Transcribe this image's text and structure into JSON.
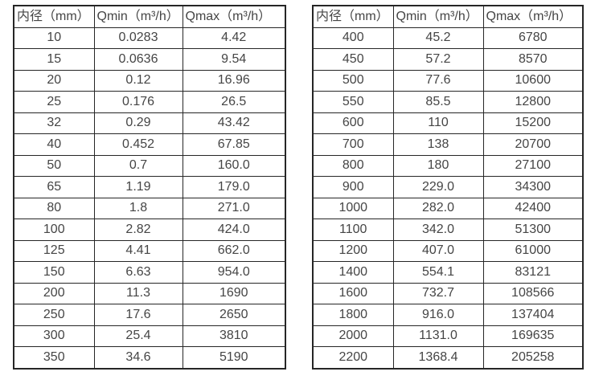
{
  "style": {
    "background_color": "#ffffff",
    "border_color": "#262626",
    "text_color": "#454545"
  },
  "chart_data": [
    {
      "type": "table",
      "name": "flow-rates-small-diameters",
      "columns": [
        "内径（mm）",
        "Qmin（m³/h）",
        "Qmax（m³/h）"
      ],
      "rows": [
        [
          "10",
          "0.0283",
          "4.42"
        ],
        [
          "15",
          "0.0636",
          "9.54"
        ],
        [
          "20",
          "0.12",
          "16.96"
        ],
        [
          "25",
          "0.176",
          "26.5"
        ],
        [
          "32",
          "0.29",
          "43.42"
        ],
        [
          "40",
          "0.452",
          "67.85"
        ],
        [
          "50",
          "0.7",
          "160.0"
        ],
        [
          "65",
          "1.19",
          "179.0"
        ],
        [
          "80",
          "1.8",
          "271.0"
        ],
        [
          "100",
          "2.82",
          "424.0"
        ],
        [
          "125",
          "4.41",
          "662.0"
        ],
        [
          "150",
          "6.63",
          "954.0"
        ],
        [
          "200",
          "11.3",
          "1690"
        ],
        [
          "250",
          "17.6",
          "2650"
        ],
        [
          "300",
          "25.4",
          "3810"
        ],
        [
          "350",
          "34.6",
          "5190"
        ]
      ]
    },
    {
      "type": "table",
      "name": "flow-rates-large-diameters",
      "columns": [
        "内径（mm）",
        "Qmin（m³/h）",
        "Qmax（m³/h）"
      ],
      "rows": [
        [
          "400",
          "45.2",
          "6780"
        ],
        [
          "450",
          "57.2",
          "8570"
        ],
        [
          "500",
          "77.6",
          "10600"
        ],
        [
          "550",
          "85.5",
          "12800"
        ],
        [
          "600",
          "110",
          "15200"
        ],
        [
          "700",
          "138",
          "20700"
        ],
        [
          "800",
          "180",
          "27100"
        ],
        [
          "900",
          "229.0",
          "34300"
        ],
        [
          "1000",
          "282.0",
          "42400"
        ],
        [
          "1100",
          "342.0",
          "51300"
        ],
        [
          "1200",
          "407.0",
          "61000"
        ],
        [
          "1400",
          "554.1",
          "83121"
        ],
        [
          "1600",
          "732.7",
          "108566"
        ],
        [
          "1800",
          "916.0",
          "137404"
        ],
        [
          "2000",
          "1131.0",
          "169635"
        ],
        [
          "2200",
          "1368.4",
          "205258"
        ]
      ]
    }
  ]
}
